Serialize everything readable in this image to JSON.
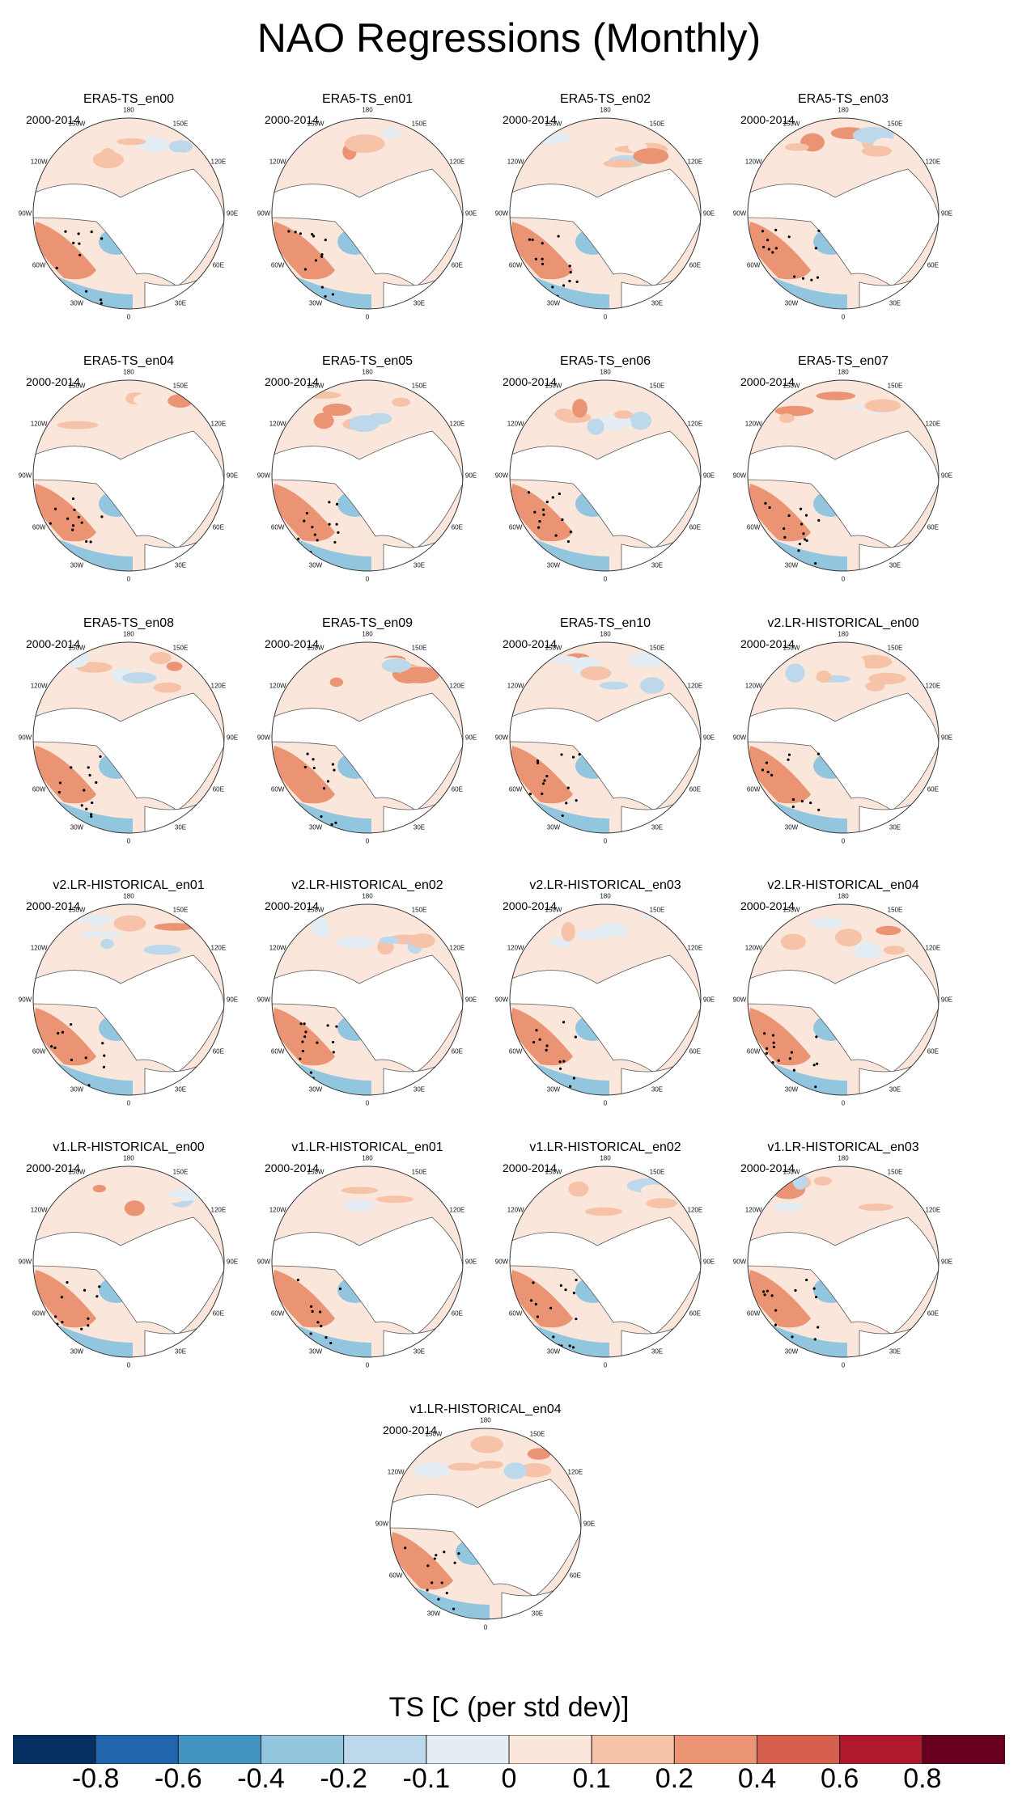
{
  "title": "NAO Regressions (Monthly)",
  "period_label": "2000-2014",
  "panels": [
    {
      "name": "ERA5-TS_en00"
    },
    {
      "name": "ERA5-TS_en01"
    },
    {
      "name": "ERA5-TS_en02"
    },
    {
      "name": "ERA5-TS_en03"
    },
    {
      "name": "ERA5-TS_en04"
    },
    {
      "name": "ERA5-TS_en05"
    },
    {
      "name": "ERA5-TS_en06"
    },
    {
      "name": "ERA5-TS_en07"
    },
    {
      "name": "ERA5-TS_en08"
    },
    {
      "name": "ERA5-TS_en09"
    },
    {
      "name": "ERA5-TS_en10"
    },
    {
      "name": "v2.LR-HISTORICAL_en00"
    },
    {
      "name": "v2.LR-HISTORICAL_en01"
    },
    {
      "name": "v2.LR-HISTORICAL_en02"
    },
    {
      "name": "v2.LR-HISTORICAL_en03"
    },
    {
      "name": "v2.LR-HISTORICAL_en04"
    },
    {
      "name": "v1.LR-HISTORICAL_en00"
    },
    {
      "name": "v1.LR-HISTORICAL_en01"
    },
    {
      "name": "v1.LR-HISTORICAL_en02"
    },
    {
      "name": "v1.LR-HISTORICAL_en03"
    },
    {
      "name": "v1.LR-HISTORICAL_en04"
    }
  ],
  "longitude_labels": [
    "180",
    "150E",
    "120E",
    "90E",
    "60E",
    "30E",
    "0",
    "30W",
    "60W",
    "90W",
    "120W",
    "150W"
  ],
  "colorbar": {
    "title": "TS [C (per std dev)]",
    "tick_labels": [
      "-0.8",
      "-0.6",
      "-0.4",
      "-0.2",
      "-0.1",
      "0",
      "0.1",
      "0.2",
      "0.4",
      "0.6",
      "0.8"
    ],
    "colors": [
      "#053061",
      "#2166ac",
      "#4393c3",
      "#92c5de",
      "#bcd8ea",
      "#e3edf3",
      "#fbe6dc",
      "#f6c3a8",
      "#ea9474",
      "#d6604d",
      "#b2182b",
      "#67001f"
    ]
  }
}
